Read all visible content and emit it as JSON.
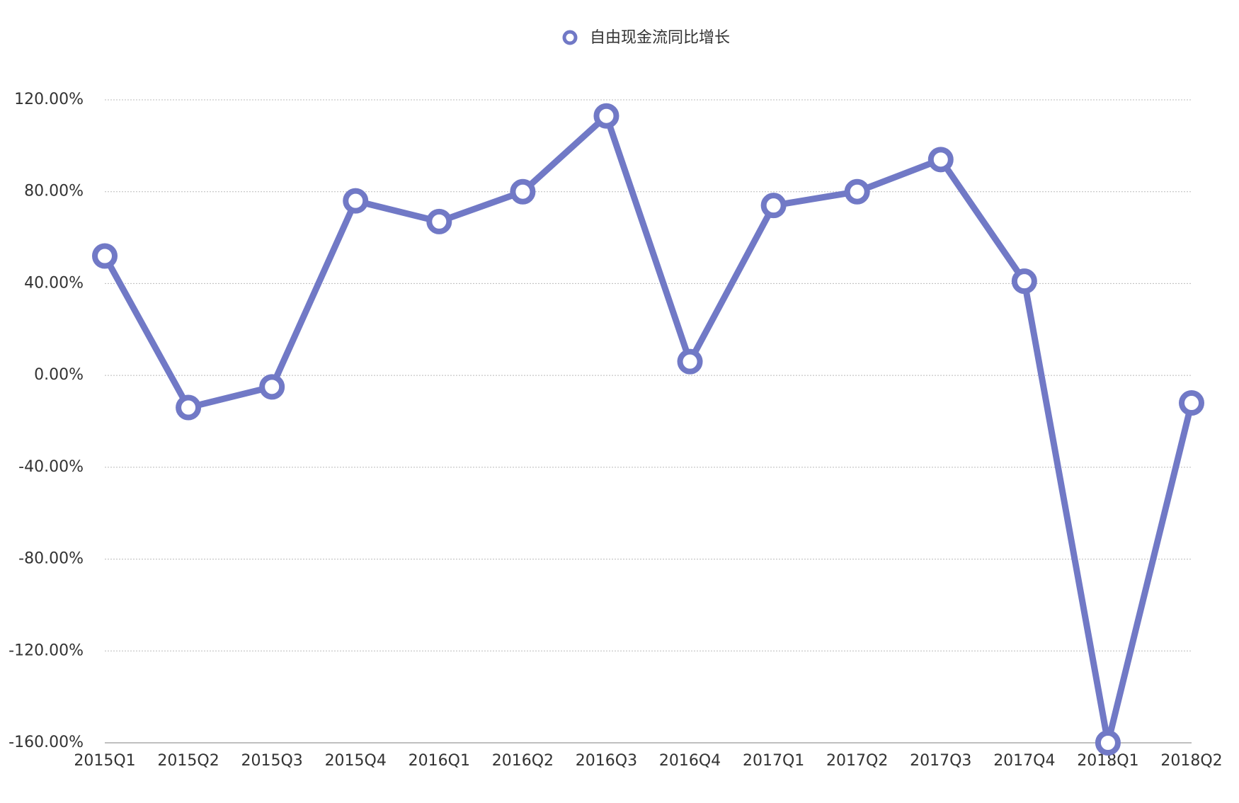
{
  "chart_data": {
    "type": "line",
    "categories": [
      "2015Q1",
      "2015Q2",
      "2015Q3",
      "2015Q4",
      "2016Q1",
      "2016Q2",
      "2016Q3",
      "2016Q4",
      "2017Q1",
      "2017Q2",
      "2017Q3",
      "2017Q4",
      "2018Q1",
      "2018Q2"
    ],
    "series": [
      {
        "name": "自由现金流同比增长",
        "color": "#7179c6",
        "values": [
          52,
          -14,
          -5,
          76,
          67,
          80,
          113,
          6,
          74,
          80,
          94,
          41,
          -160,
          -12
        ]
      }
    ],
    "ylim": [
      -160,
      120
    ],
    "yticks": [
      {
        "value": -160,
        "label": "-160.00%"
      },
      {
        "value": -120,
        "label": "-120.00%"
      },
      {
        "value": -80,
        "label": "-80.00%"
      },
      {
        "value": -40,
        "label": "-40.00%"
      },
      {
        "value": 0,
        "label": "0.00%"
      },
      {
        "value": 40,
        "label": "40.00%"
      },
      {
        "value": 80,
        "label": "80.00%"
      },
      {
        "value": 120,
        "label": "120.00%"
      }
    ],
    "grid": true
  }
}
